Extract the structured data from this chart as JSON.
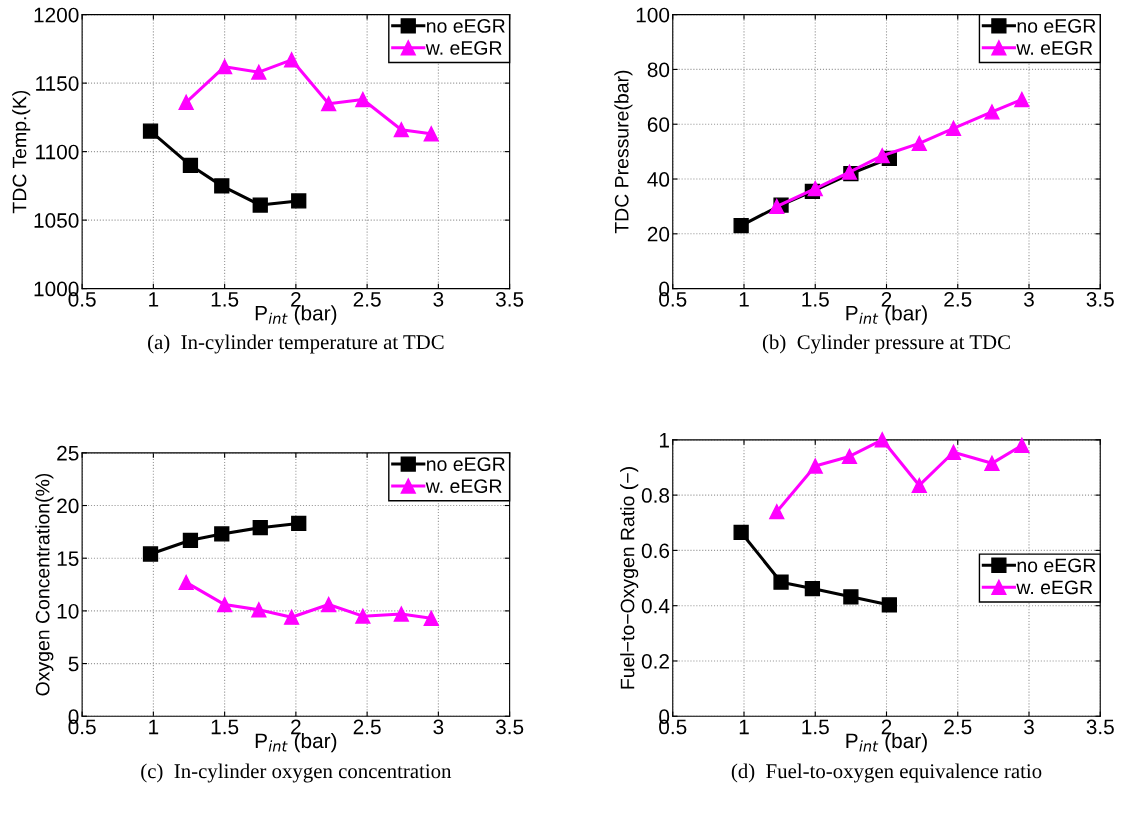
{
  "chart_data": [
    {
      "type": "line",
      "ylabel": "TDC Temp.(K)",
      "xlabel": "P$_{int}$ (bar)",
      "annotations": [
        "(a)  In-cylinder temperature at TDC"
      ],
      "xlim": [
        0.5,
        3.5
      ],
      "xticks": [
        0.5,
        1,
        1.5,
        2,
        2.5,
        3,
        3.5
      ],
      "ylim": [
        1000,
        1200
      ],
      "yticks": [
        1000,
        1050,
        1100,
        1150,
        1200
      ],
      "grid": true,
      "legend": "top right",
      "line_style": "solid",
      "series": [
        {
          "name": "no eEGR",
          "color": "#000000",
          "marker": "square",
          "x": [
            0.98,
            1.26,
            1.48,
            1.75,
            2.02
          ],
          "values": [
            1115,
            1090,
            1075,
            1061,
            1064
          ]
        },
        {
          "name": "w. eEGR",
          "color": "#ff00ff",
          "marker": "triangle",
          "x": [
            1.23,
            1.5,
            1.74,
            1.97,
            2.23,
            2.47,
            2.74,
            2.95
          ],
          "values": [
            1136,
            1162,
            1158,
            1167,
            1135,
            1138,
            1116,
            1113
          ]
        }
      ]
    },
    {
      "type": "line",
      "ylabel": "TDC Pressure(bar)",
      "xlabel": "P$_{int}$ (bar)",
      "annotations": [
        "(b)  Cylinder pressure at TDC"
      ],
      "xlim": [
        0.5,
        3.5
      ],
      "xticks": [
        0.5,
        1,
        1.5,
        2,
        2.5,
        3,
        3.5
      ],
      "ylim": [
        0,
        100
      ],
      "yticks": [
        0,
        20,
        40,
        60,
        80,
        100
      ],
      "grid": true,
      "legend": "top right",
      "line_style": "solid",
      "series": [
        {
          "name": "no eEGR",
          "color": "#000000",
          "marker": "square",
          "x": [
            0.98,
            1.26,
            1.48,
            1.75,
            2.02
          ],
          "values": [
            23,
            30.5,
            35.5,
            42,
            47.5
          ]
        },
        {
          "name": "w. eEGR",
          "color": "#ff00ff",
          "marker": "triangle",
          "x": [
            1.23,
            1.5,
            1.74,
            1.97,
            2.23,
            2.47,
            2.74,
            2.95
          ],
          "values": [
            30,
            36.5,
            42.5,
            48.5,
            53,
            58.5,
            64.5,
            69
          ]
        }
      ]
    },
    {
      "type": "line",
      "ylabel": "Oxygen Concentration(%)",
      "xlabel": "P$_{int}$ (bar)",
      "annotations": [
        "(c)  In-cylinder oxygen concentration"
      ],
      "xlim": [
        0.5,
        3.5
      ],
      "xticks": [
        0.5,
        1,
        1.5,
        2,
        2.5,
        3,
        3.5
      ],
      "ylim": [
        0,
        25
      ],
      "yticks": [
        0,
        5,
        10,
        15,
        20,
        25
      ],
      "grid": true,
      "legend": "top right",
      "line_style": "solid",
      "series": [
        {
          "name": "no eEGR",
          "color": "#000000",
          "marker": "square",
          "x": [
            0.98,
            1.26,
            1.48,
            1.75,
            2.02
          ],
          "values": [
            15.4,
            16.7,
            17.3,
            17.9,
            18.3
          ]
        },
        {
          "name": "w. eEGR",
          "color": "#ff00ff",
          "marker": "triangle",
          "x": [
            1.23,
            1.5,
            1.74,
            1.97,
            2.23,
            2.47,
            2.74,
            2.95
          ],
          "values": [
            12.7,
            10.6,
            10.1,
            9.4,
            10.6,
            9.5,
            9.7,
            9.3
          ]
        }
      ]
    },
    {
      "type": "line",
      "ylabel": "Fuel−to−Oxygen Ratio (−)",
      "xlabel": "P$_{int}$ (bar)",
      "annotations": [
        "(d)  Fuel-to-oxygen equivalence ratio"
      ],
      "xlim": [
        0.5,
        3.5
      ],
      "xticks": [
        0.5,
        1,
        1.5,
        2,
        2.5,
        3,
        3.5
      ],
      "ylim": [
        0,
        1
      ],
      "yticks": [
        0,
        0.2,
        0.4,
        0.6,
        0.8,
        1
      ],
      "grid": true,
      "legend": "right",
      "line_style": "solid",
      "series": [
        {
          "name": "no eEGR",
          "color": "#000000",
          "marker": "square",
          "x": [
            0.98,
            1.26,
            1.48,
            1.75,
            2.02
          ],
          "values": [
            0.665,
            0.485,
            0.462,
            0.432,
            0.403
          ]
        },
        {
          "name": "w. eEGR",
          "color": "#ff00ff",
          "marker": "triangle",
          "x": [
            1.23,
            1.5,
            1.74,
            1.97,
            2.23,
            2.47,
            2.74,
            2.95
          ],
          "values": [
            0.74,
            0.905,
            0.94,
            1.0,
            0.835,
            0.955,
            0.915,
            0.98
          ]
        }
      ]
    }
  ]
}
